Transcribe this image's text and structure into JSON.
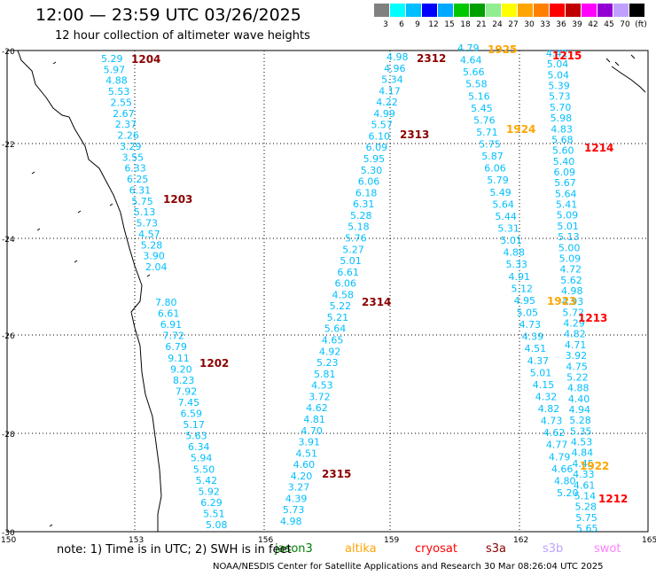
{
  "header": {
    "title": "12:00 — 23:59 UTC 03/26/2025",
    "subtitle": "12 hour collection of altimeter wave heights"
  },
  "color_scale": {
    "colors": [
      "#808080",
      "#00ffff",
      "#00bfff",
      "#0000ff",
      "#00a8ff",
      "#00c800",
      "#00a000",
      "#90ee90",
      "#ffff00",
      "#ffa500",
      "#ff8000",
      "#ff0000",
      "#c00000",
      "#ff00ff",
      "#9400d3",
      "#c0a0ff",
      "#000000"
    ],
    "labels": [
      "3",
      "6",
      "9",
      "12",
      "15",
      "18",
      "21",
      "24",
      "27",
      "30",
      "33",
      "36",
      "39",
      "42",
      "45",
      "70",
      "(ft)"
    ]
  },
  "axes": {
    "lat_labels": [
      "-20",
      "-22",
      "-24",
      "-26",
      "-28",
      "-30"
    ],
    "lon_labels": [
      "150",
      "153",
      "156",
      "159",
      "162",
      "165"
    ]
  },
  "tracks": [
    {
      "id": "1204",
      "label_color": "#8b0000",
      "value_color": "#00bfff",
      "values": [
        "5.29",
        "5.97",
        "4.88",
        "5.53",
        "2.55",
        "2.67",
        "2.37",
        "2.26",
        "3.29",
        "3.55",
        "6.33",
        "6.25",
        "6.31",
        "5.75",
        "5.13",
        "5.73",
        "4.57",
        "5.28",
        "3.90",
        "2.04"
      ]
    },
    {
      "id": "1203",
      "label_color": "#8b0000"
    },
    {
      "id": "1202",
      "label_color": "#8b0000",
      "value_color": "#00bfff",
      "values": [
        "7.80",
        "6.61",
        "6.91",
        "7.72",
        "6.79",
        "9.11",
        "9.20",
        "8.23",
        "7.92",
        "7.45",
        "6.59",
        "5.17",
        "5.63",
        "6.34",
        "5.94",
        "5.50",
        "5.42",
        "5.92",
        "6.29",
        "5.51",
        "5.08"
      ]
    },
    {
      "id": "2312",
      "label_color": "#8b0000",
      "value_color": "#00bfff",
      "values": [
        "4.98",
        "4.96",
        "5.34",
        "4.17",
        "4.22",
        "4.99",
        "5.57",
        "6.10",
        "6.09",
        "5.95",
        "5.30",
        "6.06",
        "6.18",
        "6.31",
        "5.28",
        "5.18",
        "5.76",
        "5.27",
        "5.01",
        "6.61",
        "6.06",
        "4.58",
        "5.22",
        "5.21",
        "5.64",
        "4.65",
        "4.92",
        "5.23",
        "5.81",
        "4.53",
        "3.72",
        "4.62",
        "4.81",
        "4.70",
        "3.91",
        "4.51",
        "4.60",
        "4.20",
        "3.27",
        "4.39",
        "5.73",
        "4.98"
      ]
    },
    {
      "id": "2313",
      "label_color": "#8b0000"
    },
    {
      "id": "2314",
      "label_color": "#8b0000"
    },
    {
      "id": "2315",
      "label_color": "#8b0000"
    },
    {
      "id": "1925",
      "label_color": "#ffa500",
      "value_color": "#00bfff",
      "values": [
        "4.79",
        "4.64",
        "5.66",
        "5.58",
        "5.16",
        "5.45",
        "5.76",
        "5.71",
        "5.75",
        "5.87",
        "6.06",
        "5.79",
        "5.49",
        "5.64",
        "5.44",
        "5.31",
        "5.01",
        "4.88",
        "5.33",
        "4.91",
        "5.12",
        "4.95",
        "5.05",
        "4.73",
        "4.39",
        "4.51",
        "4.37",
        "5.01",
        "4.15",
        "4.32",
        "4.82",
        "4.73",
        "4.62",
        "4.77",
        "4.79",
        "4.66",
        "4.80",
        "5.20"
      ]
    },
    {
      "id": "1924",
      "label_color": "#ffa500"
    },
    {
      "id": "1923",
      "label_color": "#ffa500"
    },
    {
      "id": "1922",
      "label_color": "#ffa500"
    },
    {
      "id": "1215",
      "label_color": "#ff0000",
      "value_color": "#00bfff",
      "values": [
        "4.42",
        "5.04",
        "5.04",
        "5.39",
        "5.73",
        "5.70",
        "5.98",
        "4.83",
        "5.68",
        "5.60",
        "5.40",
        "6.09",
        "5.67",
        "5.64",
        "5.41",
        "5.09",
        "5.01",
        "5.13",
        "5.00",
        "5.09",
        "4.72",
        "5.62",
        "4.98",
        "4.93",
        "5.72",
        "4.29",
        "4.82",
        "4.71",
        "3.92",
        "4.75",
        "5.22",
        "4.88",
        "4.40",
        "4.94",
        "5.28",
        "5.35",
        "4.53",
        "4.84",
        "4.45",
        "4.33",
        "4.61",
        "5.14",
        "5.28",
        "5.75",
        "5.65"
      ]
    },
    {
      "id": "1214",
      "label_color": "#ff0000"
    },
    {
      "id": "1213",
      "label_color": "#ff0000"
    },
    {
      "id": "1212",
      "label_color": "#ff0000"
    }
  ],
  "footer": {
    "note": "note:  1) Time is in UTC;  2) SWH is in feet",
    "satellites": [
      {
        "name": "jason3",
        "color": "#008000"
      },
      {
        "name": "altika",
        "color": "#ffa500"
      },
      {
        "name": "cryosat",
        "color": "#ff0000"
      },
      {
        "name": "s3a",
        "color": "#8b0000"
      },
      {
        "name": "s3b",
        "color": "#c0a0ff"
      },
      {
        "name": "swot",
        "color": "#ff80ff"
      }
    ],
    "credit": "NOAA/NESDIS Center for Satellite Applications and Research    30 Mar 08:26:04 UTC 2025"
  }
}
